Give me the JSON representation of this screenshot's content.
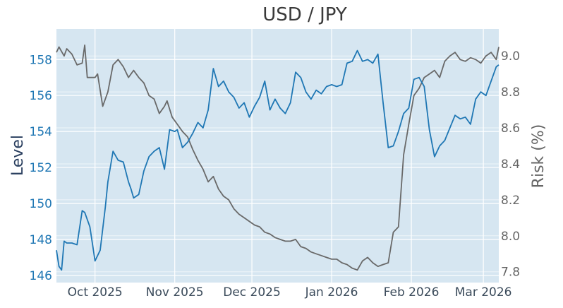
{
  "chart_data": {
    "type": "line",
    "title": "USD / JPY",
    "ylabel": "Level",
    "y2label": "Risk (%)",
    "xlim": [
      "2025-09-16",
      "2026-03-07"
    ],
    "ylim": [
      145.6,
      159.7
    ],
    "y2lim": [
      7.74,
      9.15
    ],
    "grid": true,
    "plot_bg": "#d6e6f1",
    "grid_color": "#ffffff",
    "x_ticks": [
      {
        "date": "2025-10-01",
        "label": "Oct 2025"
      },
      {
        "date": "2025-11-01",
        "label": "Nov 2025"
      },
      {
        "date": "2025-12-01",
        "label": "Dec 2025"
      },
      {
        "date": "2026-01-01",
        "label": "Jan 2026"
      },
      {
        "date": "2026-02-01",
        "label": "Feb 2026"
      },
      {
        "date": "2026-03-01",
        "label": "Mar 2026"
      }
    ],
    "y_ticks": [
      "146",
      "148",
      "150",
      "152",
      "154",
      "156",
      "158"
    ],
    "y2_ticks": [
      "7.8",
      "8.0",
      "8.2",
      "8.4",
      "8.6",
      "8.8",
      "9.0"
    ],
    "series": [
      {
        "axis": "left",
        "color": "#1f77b4",
        "x": [
          "2025-09-16",
          "2025-09-17",
          "2025-09-18",
          "2025-09-19",
          "2025-09-20",
          "2025-09-22",
          "2025-09-24",
          "2025-09-26",
          "2025-09-27",
          "2025-09-29",
          "2025-10-01",
          "2025-10-03",
          "2025-10-05",
          "2025-10-06",
          "2025-10-08",
          "2025-10-10",
          "2025-10-12",
          "2025-10-14",
          "2025-10-15",
          "2025-10-16",
          "2025-10-18",
          "2025-10-20",
          "2025-10-22",
          "2025-10-24",
          "2025-10-26",
          "2025-10-28",
          "2025-10-30",
          "2025-11-01",
          "2025-11-02",
          "2025-11-04",
          "2025-11-06",
          "2025-11-08",
          "2025-11-10",
          "2025-11-12",
          "2025-11-14",
          "2025-11-16",
          "2025-11-18",
          "2025-11-20",
          "2025-11-22",
          "2025-11-24",
          "2025-11-26",
          "2025-11-28",
          "2025-11-30",
          "2025-12-02",
          "2025-12-04",
          "2025-12-06",
          "2025-12-08",
          "2025-12-10",
          "2025-12-12",
          "2025-12-14",
          "2025-12-16",
          "2025-12-18",
          "2025-12-20",
          "2025-12-22",
          "2025-12-24",
          "2025-12-26",
          "2025-12-28",
          "2025-12-30",
          "2026-01-01",
          "2026-01-03",
          "2026-01-05",
          "2026-01-07",
          "2026-01-09",
          "2026-01-11",
          "2026-01-13",
          "2026-01-15",
          "2026-01-17",
          "2026-01-19",
          "2026-01-21",
          "2026-01-23",
          "2026-01-25",
          "2026-01-27",
          "2026-01-29",
          "2026-01-31",
          "2026-02-02",
          "2026-02-04",
          "2026-02-06",
          "2026-02-08",
          "2026-02-10",
          "2026-02-12",
          "2026-02-14",
          "2026-02-16",
          "2026-02-18",
          "2026-02-20",
          "2026-02-22",
          "2026-02-24",
          "2026-02-26",
          "2026-02-28",
          "2026-03-02",
          "2026-03-04",
          "2026-03-06",
          "2026-03-07"
        ],
        "values": [
          147.4,
          146.5,
          146.3,
          147.9,
          147.8,
          147.8,
          147.7,
          149.6,
          149.5,
          148.7,
          146.8,
          147.4,
          149.8,
          151.2,
          152.9,
          152.4,
          152.3,
          151.2,
          150.8,
          150.3,
          150.5,
          151.8,
          152.6,
          152.9,
          153.1,
          151.9,
          154.1,
          154.0,
          154.1,
          153.1,
          153.4,
          153.9,
          154.5,
          154.2,
          155.2,
          157.5,
          156.5,
          156.8,
          156.2,
          155.9,
          155.3,
          155.6,
          154.8,
          155.4,
          155.9,
          156.8,
          155.2,
          155.8,
          155.3,
          155.0,
          155.6,
          157.3,
          157.0,
          156.2,
          155.8,
          156.3,
          156.1,
          156.5,
          156.6,
          156.5,
          156.6,
          157.8,
          157.9,
          158.5,
          157.9,
          158.0,
          157.8,
          158.3,
          155.6,
          153.1,
          153.2,
          154.0,
          155.0,
          155.3,
          156.9,
          157.0,
          156.5,
          154.1,
          152.6,
          153.2,
          153.5,
          154.2,
          154.9,
          154.7,
          154.8,
          154.4,
          155.8,
          156.2,
          156.0,
          156.8,
          157.6,
          157.7
        ]
      },
      {
        "axis": "right",
        "color": "#696969",
        "x": [
          "2025-09-16",
          "2025-09-17",
          "2025-09-19",
          "2025-09-20",
          "2025-09-22",
          "2025-09-24",
          "2025-09-26",
          "2025-09-27",
          "2025-09-28",
          "2025-10-01",
          "2025-10-02",
          "2025-10-04",
          "2025-10-06",
          "2025-10-08",
          "2025-10-10",
          "2025-10-12",
          "2025-10-14",
          "2025-10-16",
          "2025-10-18",
          "2025-10-20",
          "2025-10-22",
          "2025-10-24",
          "2025-10-26",
          "2025-10-28",
          "2025-10-29",
          "2025-10-31",
          "2025-11-02",
          "2025-11-04",
          "2025-11-06",
          "2025-11-08",
          "2025-11-10",
          "2025-11-12",
          "2025-11-14",
          "2025-11-16",
          "2025-11-18",
          "2025-11-20",
          "2025-11-22",
          "2025-11-24",
          "2025-11-26",
          "2025-11-28",
          "2025-11-30",
          "2025-12-02",
          "2025-12-04",
          "2025-12-06",
          "2025-12-08",
          "2025-12-10",
          "2025-12-12",
          "2025-12-14",
          "2025-12-16",
          "2025-12-18",
          "2025-12-20",
          "2025-12-22",
          "2025-12-24",
          "2025-12-26",
          "2025-12-28",
          "2025-12-30",
          "2026-01-01",
          "2026-01-03",
          "2026-01-05",
          "2026-01-07",
          "2026-01-09",
          "2026-01-11",
          "2026-01-13",
          "2026-01-15",
          "2026-01-17",
          "2026-01-19",
          "2026-01-21",
          "2026-01-23",
          "2026-01-25",
          "2026-01-27",
          "2026-01-29",
          "2026-01-31",
          "2026-02-02",
          "2026-02-04",
          "2026-02-06",
          "2026-02-08",
          "2026-02-10",
          "2026-02-12",
          "2026-02-14",
          "2026-02-16",
          "2026-02-18",
          "2026-02-20",
          "2026-02-22",
          "2026-02-24",
          "2026-02-26",
          "2026-02-28",
          "2026-03-02",
          "2026-03-04",
          "2026-03-06",
          "2026-03-07"
        ],
        "values": [
          9.02,
          9.05,
          9.0,
          9.04,
          9.01,
          8.95,
          8.96,
          9.06,
          8.88,
          8.88,
          8.9,
          8.72,
          8.8,
          8.95,
          8.98,
          8.94,
          8.88,
          8.92,
          8.88,
          8.85,
          8.78,
          8.76,
          8.68,
          8.72,
          8.75,
          8.66,
          8.62,
          8.58,
          8.55,
          8.48,
          8.42,
          8.37,
          8.3,
          8.33,
          8.26,
          8.22,
          8.2,
          8.15,
          8.12,
          8.1,
          8.08,
          8.06,
          8.05,
          8.02,
          8.01,
          7.99,
          7.98,
          7.97,
          7.97,
          7.98,
          7.94,
          7.93,
          7.91,
          7.9,
          7.89,
          7.88,
          7.87,
          7.87,
          7.85,
          7.84,
          7.82,
          7.81,
          7.86,
          7.88,
          7.85,
          7.83,
          7.84,
          7.85,
          8.02,
          8.05,
          8.45,
          8.62,
          8.78,
          8.82,
          8.88,
          8.9,
          8.92,
          8.88,
          8.97,
          9.0,
          9.02,
          8.98,
          8.97,
          8.99,
          8.98,
          8.96,
          9.0,
          9.02,
          8.98,
          9.05
        ]
      }
    ]
  }
}
